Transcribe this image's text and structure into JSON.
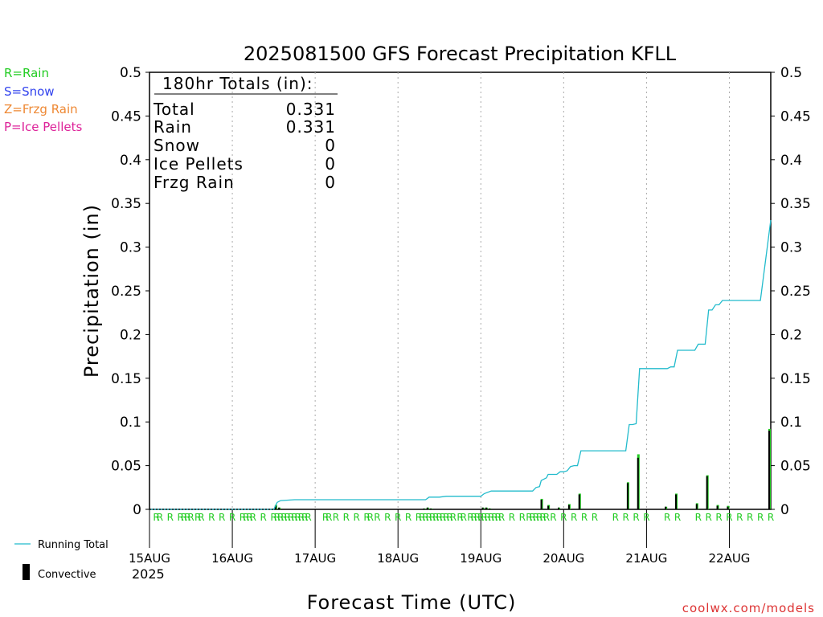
{
  "title": "2025081500 GFS Forecast Precipitation KFLL",
  "ylabel": "Precipitation (in)",
  "xlabel": "Forecast Time (UTC)",
  "credit": "coolwx.com/models",
  "year_label": "2025",
  "colors": {
    "rain": "#22cc22",
    "snow": "#3344ee",
    "frzg_rain": "#ee8833",
    "ice_pellets": "#dd2299",
    "running_total": "#22bbcc",
    "convective": "#000000",
    "credit": "#dd3333"
  },
  "type_legend": [
    {
      "label": "R=Rain",
      "color_key": "rain"
    },
    {
      "label": "S=Snow",
      "color_key": "snow"
    },
    {
      "label": "Z=Frzg Rain",
      "color_key": "frzg_rain"
    },
    {
      "label": "P=Ice Pellets",
      "color_key": "ice_pellets"
    }
  ],
  "series_legend": [
    {
      "label": "Running Total",
      "kind": "line"
    },
    {
      "label": "Convective",
      "kind": "bar"
    }
  ],
  "totals_box": {
    "heading": "180hr Totals (in):",
    "rows": [
      {
        "label": "Total",
        "value": "0.331"
      },
      {
        "label": "Rain",
        "value": "0.331"
      },
      {
        "label": "Snow",
        "value": "0"
      },
      {
        "label": "Ice Pellets",
        "value": "0"
      },
      {
        "label": "Frzg Rain",
        "value": "0"
      }
    ]
  },
  "chart_data": {
    "type": "bar",
    "x_unit": "forecast hour (0 = 15AUG 00Z)",
    "xlim": [
      0,
      180
    ],
    "ylim": [
      0,
      0.5
    ],
    "y_ticks": [
      0,
      0.05,
      0.1,
      0.15,
      0.2,
      0.25,
      0.3,
      0.35,
      0.4,
      0.45,
      0.5
    ],
    "y_tick_labels": [
      "0",
      "0.05",
      "0.1",
      "0.15",
      "0.2",
      "0.25",
      "0.3",
      "0.35",
      "0.4",
      "0.45",
      "0.5"
    ],
    "x_ticks": [
      {
        "hour": 0,
        "label": "15AUG"
      },
      {
        "hour": 24,
        "label": "16AUG"
      },
      {
        "hour": 48,
        "label": "17AUG"
      },
      {
        "hour": 72,
        "label": "18AUG"
      },
      {
        "hour": 96,
        "label": "19AUG"
      },
      {
        "hour": 120,
        "label": "20AUG"
      },
      {
        "hour": 144,
        "label": "21AUG"
      },
      {
        "hour": 168,
        "label": "22AUG"
      }
    ],
    "grid": "vertical dotted at day boundaries",
    "running_total": [
      [
        0,
        0
      ],
      [
        36,
        0
      ],
      [
        37,
        0.008
      ],
      [
        38,
        0.01
      ],
      [
        42,
        0.011
      ],
      [
        48,
        0.011
      ],
      [
        72,
        0.011
      ],
      [
        80,
        0.011
      ],
      [
        81,
        0.014
      ],
      [
        84,
        0.014
      ],
      [
        86,
        0.015
      ],
      [
        96,
        0.015
      ],
      [
        97,
        0.018
      ],
      [
        99,
        0.021
      ],
      [
        111,
        0.021
      ],
      [
        112,
        0.025
      ],
      [
        113,
        0.026
      ],
      [
        113.5,
        0.033
      ],
      [
        115,
        0.036
      ],
      [
        115.5,
        0.04
      ],
      [
        118,
        0.04
      ],
      [
        119,
        0.043
      ],
      [
        120,
        0.043
      ],
      [
        121,
        0.044
      ],
      [
        122,
        0.049
      ],
      [
        123,
        0.05
      ],
      [
        124,
        0.05
      ],
      [
        125,
        0.067
      ],
      [
        126,
        0.067
      ],
      [
        138,
        0.067
      ],
      [
        139,
        0.097
      ],
      [
        140,
        0.097
      ],
      [
        141,
        0.098
      ],
      [
        142,
        0.161
      ],
      [
        150,
        0.161
      ],
      [
        151,
        0.163
      ],
      [
        152,
        0.163
      ],
      [
        153,
        0.182
      ],
      [
        158,
        0.182
      ],
      [
        159,
        0.189
      ],
      [
        161,
        0.189
      ],
      [
        162,
        0.228
      ],
      [
        163,
        0.228
      ],
      [
        164,
        0.234
      ],
      [
        165,
        0.234
      ],
      [
        166,
        0.239
      ],
      [
        177,
        0.239
      ],
      [
        180,
        0.331
      ]
    ],
    "precip_bars": [
      {
        "hour": 37,
        "total": 0.005,
        "convective": 0.004
      },
      {
        "hour": 38,
        "total": 0.002,
        "convective": 0.002
      },
      {
        "hour": 80,
        "total": 0.001,
        "convective": 0.001
      },
      {
        "hour": 81,
        "total": 0.002,
        "convective": 0.002
      },
      {
        "hour": 82,
        "total": 0.001,
        "convective": 0.001
      },
      {
        "hour": 97,
        "total": 0.002,
        "convective": 0.002
      },
      {
        "hour": 98,
        "total": 0.002,
        "convective": 0.002
      },
      {
        "hour": 99,
        "total": 0.001,
        "convective": 0.001
      },
      {
        "hour": 114,
        "total": 0.012,
        "convective": 0.011
      },
      {
        "hour": 116,
        "total": 0.005,
        "convective": 0.004
      },
      {
        "hour": 119,
        "total": 0.002,
        "convective": 0.002
      },
      {
        "hour": 122,
        "total": 0.006,
        "convective": 0.005
      },
      {
        "hour": 125,
        "total": 0.018,
        "convective": 0.017
      },
      {
        "hour": 139,
        "total": 0.031,
        "convective": 0.03
      },
      {
        "hour": 142,
        "total": 0.063,
        "convective": 0.059
      },
      {
        "hour": 150,
        "total": 0.003,
        "convective": 0.003
      },
      {
        "hour": 153,
        "total": 0.018,
        "convective": 0.017
      },
      {
        "hour": 159,
        "total": 0.007,
        "convective": 0.006
      },
      {
        "hour": 162,
        "total": 0.039,
        "convective": 0.038
      },
      {
        "hour": 165,
        "total": 0.005,
        "convective": 0.004
      },
      {
        "hour": 168,
        "total": 0.004,
        "convective": 0.003
      },
      {
        "hour": 180,
        "total": 0.092,
        "convective": 0.09
      }
    ],
    "ptype_markers": {
      "letter": "R",
      "hours": [
        2,
        3,
        6,
        9,
        10,
        11,
        12,
        14,
        15,
        18,
        21,
        24,
        27,
        28,
        29,
        30,
        33,
        36,
        37,
        38,
        39,
        40,
        41,
        42,
        43,
        44,
        45,
        46,
        51,
        52,
        54,
        57,
        60,
        63,
        64,
        66,
        69,
        72,
        75,
        78,
        79,
        80,
        81,
        82,
        83,
        84,
        85,
        86,
        87,
        88,
        90,
        91,
        93,
        94,
        95,
        96,
        97,
        98,
        99,
        100,
        101,
        102,
        105,
        108,
        110,
        111,
        112,
        113,
        114,
        115,
        117,
        120,
        123,
        126,
        129,
        135,
        138,
        141,
        144,
        150,
        153,
        159,
        162,
        165,
        168,
        171,
        174,
        177,
        180
      ]
    }
  }
}
